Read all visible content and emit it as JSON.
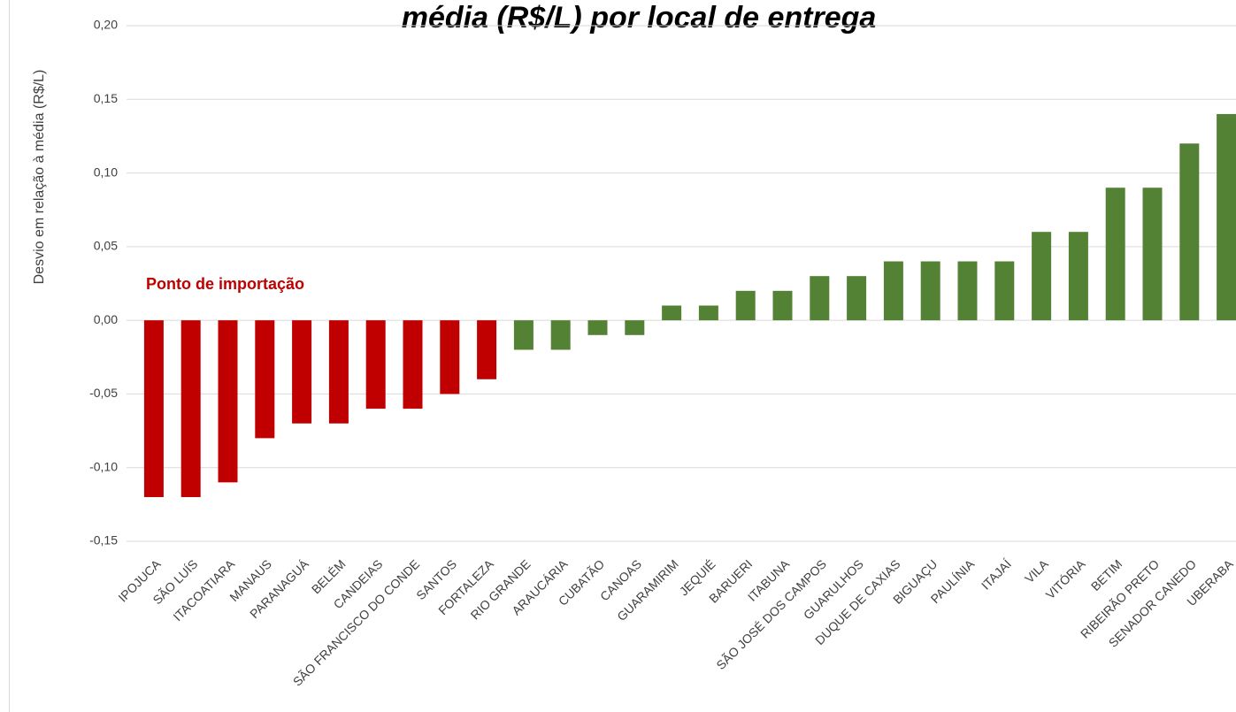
{
  "chart_data": {
    "type": "bar",
    "title": "média (R$/L) por local de entrega",
    "y_label": "Desvio em relação à média (R$/L)",
    "annotation": "Ponto de importação",
    "categories": [
      "IPOJUCA",
      "SÃO LUÍS",
      "ITACOATIARA",
      "MANAUS",
      "PARANAGUÁ",
      "BELÉM",
      "CANDEIAS",
      "SÃO FRANCISCO DO CONDE",
      "SANTOS",
      "FORTALEZA",
      "RIO GRANDE",
      "ARAUCÁRIA",
      "CUBATÃO",
      "CANOAS",
      "GUARAMIRIM",
      "JEQUIÉ",
      "BARUERI",
      "ITABUNA",
      "SÃO JOSÉ DOS CAMPOS",
      "GUARULHOS",
      "DUQUE DE CAXIAS",
      "BIGUAÇU",
      "PAULÍNIA",
      "ITAJAÍ",
      "VILA",
      "VITÓRIA",
      "BETIM",
      "RIBEIRÃO PRETO",
      "SENADOR CANEDO",
      "UBERABA"
    ],
    "values": [
      -0.12,
      -0.12,
      -0.11,
      -0.08,
      -0.07,
      -0.07,
      -0.06,
      -0.06,
      -0.05,
      -0.04,
      -0.02,
      -0.02,
      -0.01,
      -0.01,
      0.01,
      0.01,
      0.02,
      0.02,
      0.03,
      0.03,
      0.04,
      0.04,
      0.04,
      0.04,
      0.06,
      0.06,
      0.09,
      0.09,
      0.12,
      0.14
    ],
    "colors": [
      "#c00000",
      "#c00000",
      "#c00000",
      "#c00000",
      "#c00000",
      "#c00000",
      "#c00000",
      "#c00000",
      "#c00000",
      "#c00000",
      "#548235",
      "#548235",
      "#548235",
      "#548235",
      "#548235",
      "#548235",
      "#548235",
      "#548235",
      "#548235",
      "#548235",
      "#548235",
      "#548235",
      "#548235",
      "#548235",
      "#548235",
      "#548235",
      "#548235",
      "#548235",
      "#548235",
      "#548235"
    ],
    "annotation_color": "#c00000",
    "ylim": [
      -0.15,
      0.2
    ],
    "yticks": [
      {
        "value": -0.15,
        "label": "-0,15"
      },
      {
        "value": -0.1,
        "label": "-0,10"
      },
      {
        "value": -0.05,
        "label": "-0,05"
      },
      {
        "value": 0,
        "label": "0,00"
      },
      {
        "value": 0.05,
        "label": "0,05"
      },
      {
        "value": 0.1,
        "label": "0,10"
      },
      {
        "value": 0.15,
        "label": "0,15"
      },
      {
        "value": 0.2,
        "label": "0,20"
      }
    ],
    "grid": true
  }
}
